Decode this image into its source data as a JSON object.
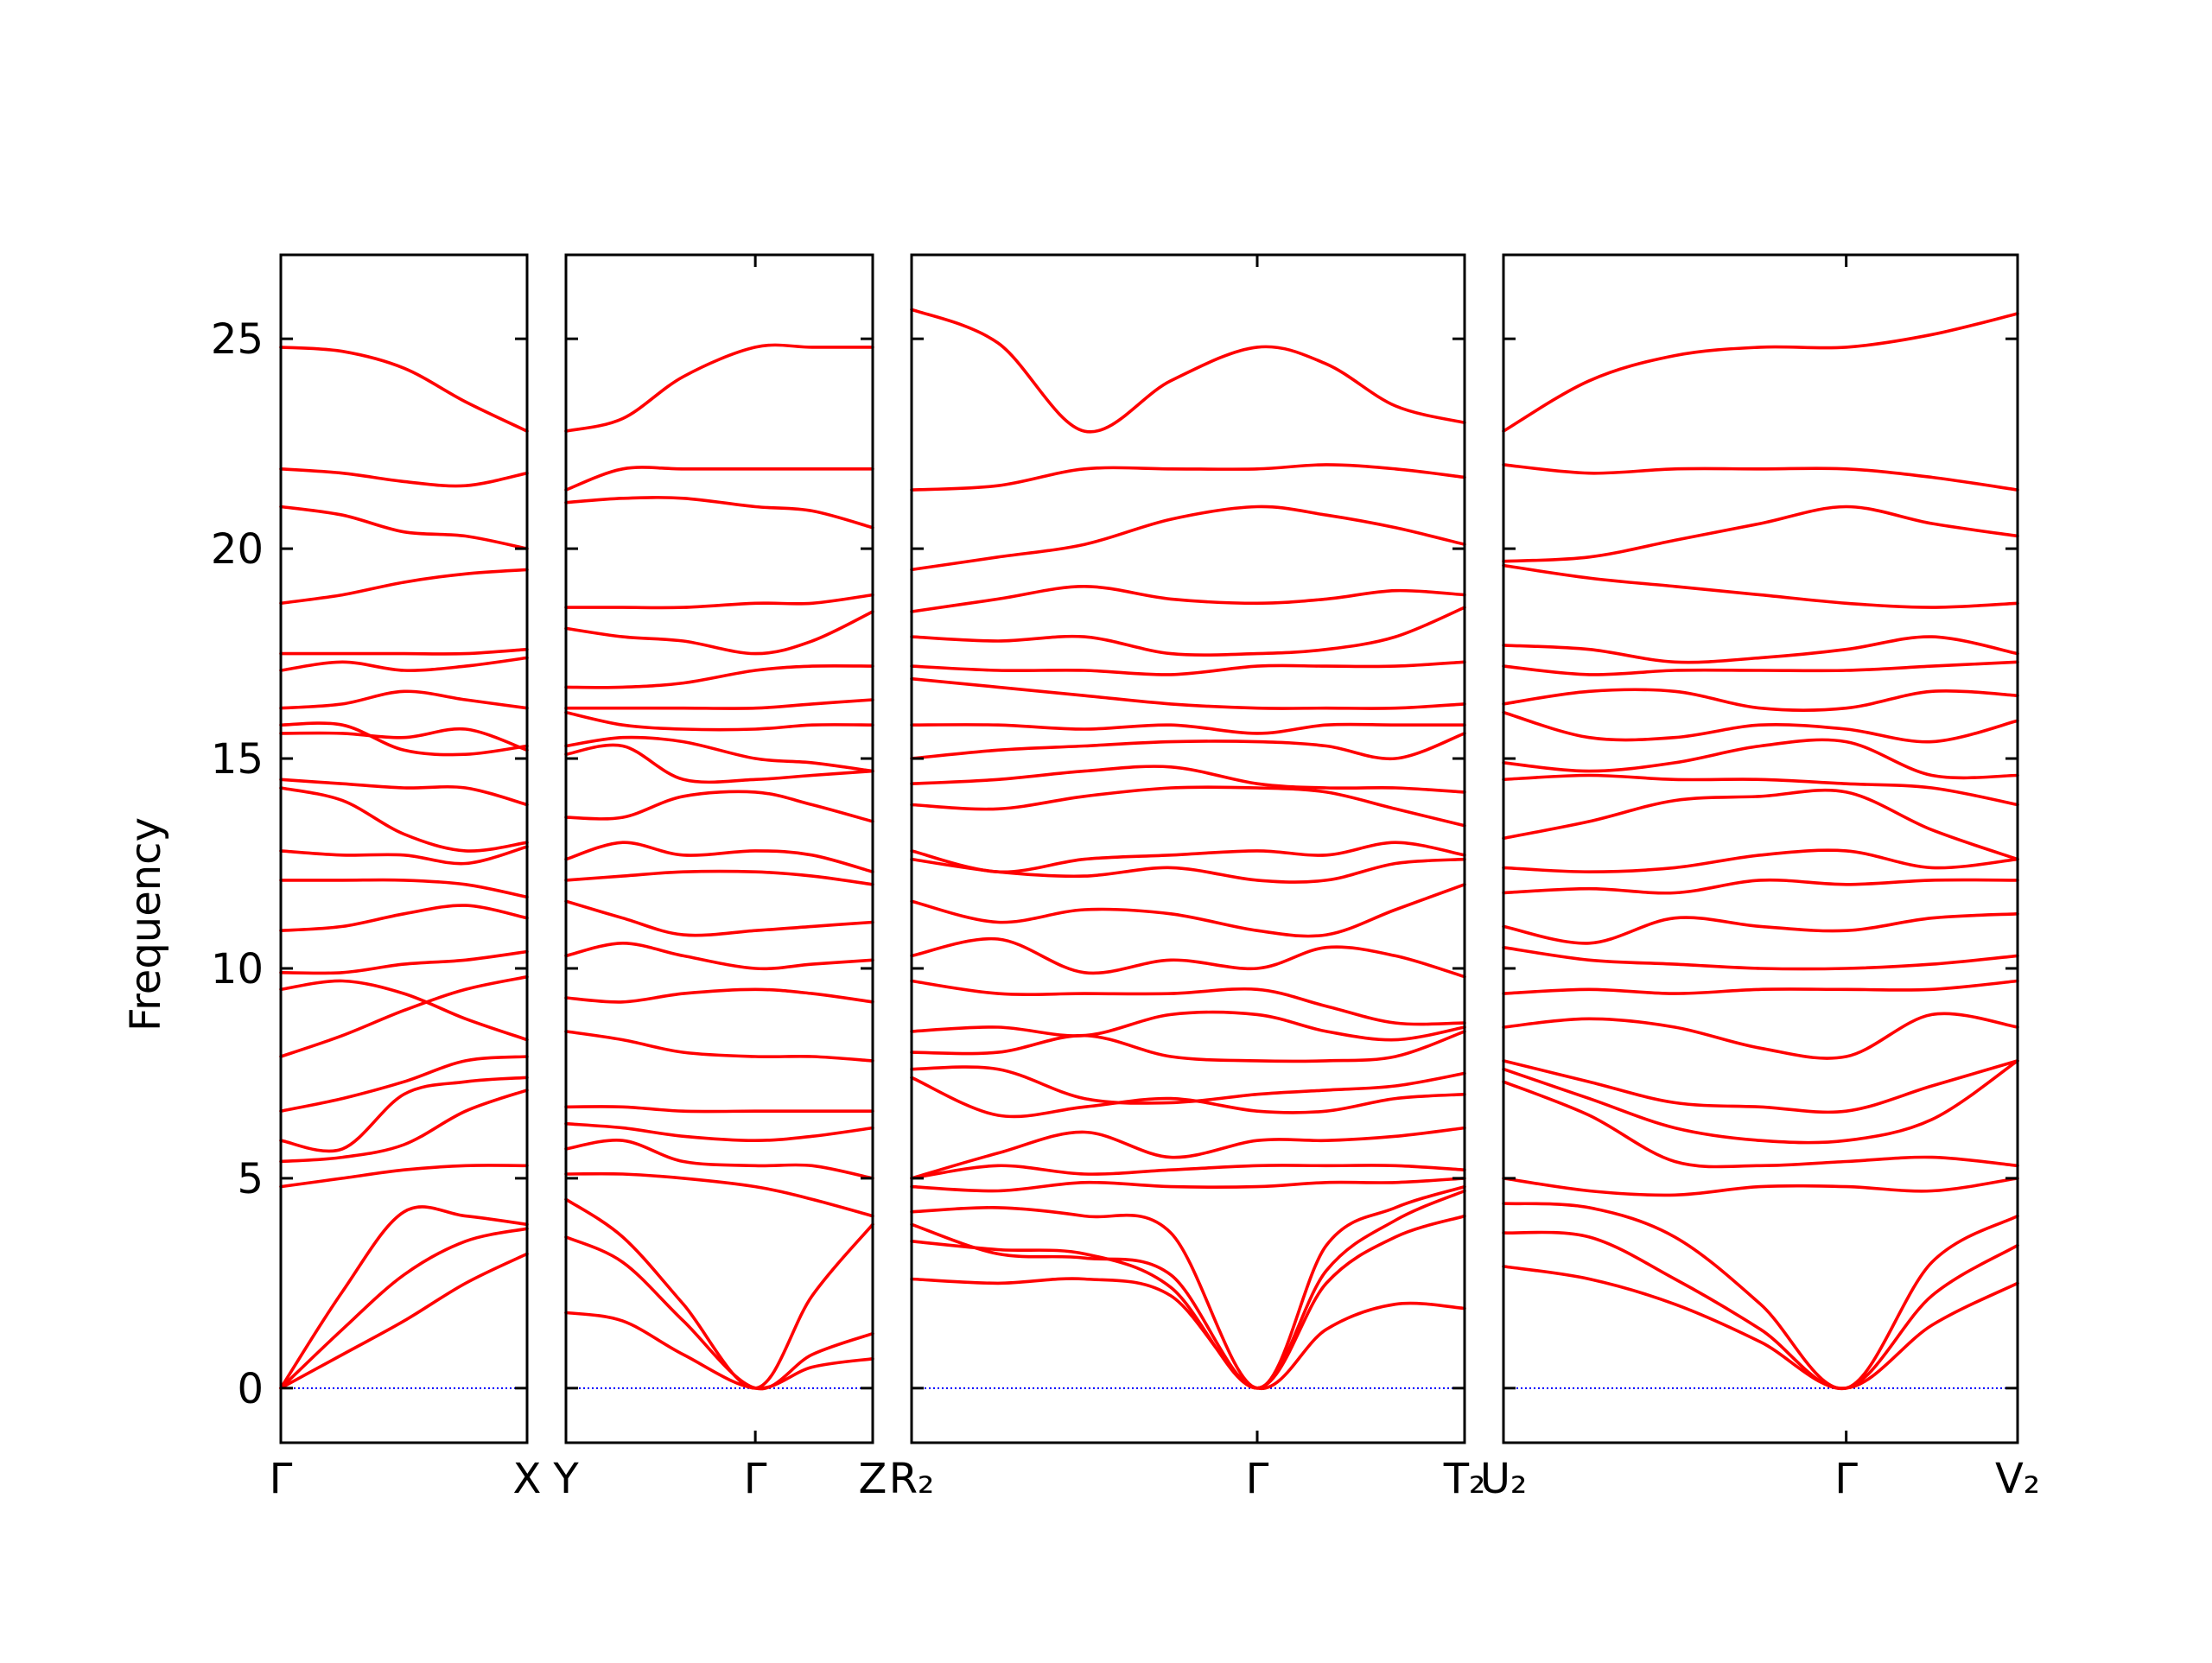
{
  "chart_data": {
    "type": "line",
    "title": "",
    "ylabel": "Frequency",
    "ylim": [
      -1.3,
      27
    ],
    "yticks": [
      0,
      5,
      10,
      15,
      20,
      25
    ],
    "ytick_labels": [
      "0",
      "5",
      "10",
      "15",
      "20",
      "25"
    ],
    "grid": false,
    "legend": "none",
    "line_color": "#ff0000",
    "zero_line_color": "#0000ff",
    "panels": [
      {
        "path": "Γ–X",
        "x": [
          0,
          0.25,
          0.5,
          0.75,
          1
        ],
        "xticks": [
          0,
          1
        ],
        "xtick_labels": [
          "Γ",
          "X"
        ],
        "bands": [
          [
            0,
            0.8,
            1.6,
            2.5,
            3.2
          ],
          [
            0,
            1.4,
            2.7,
            3.5,
            3.8
          ],
          [
            0,
            2.3,
            4.2,
            4.1,
            3.9
          ],
          [
            4.8,
            5.0,
            5.2,
            5.3,
            5.3
          ],
          [
            5.4,
            5.5,
            5.8,
            6.6,
            7.1
          ],
          [
            5.9,
            5.7,
            7.0,
            7.3,
            7.4
          ],
          [
            6.6,
            6.9,
            7.3,
            7.8,
            7.9
          ],
          [
            7.9,
            8.4,
            9.0,
            9.5,
            9.8
          ],
          [
            9.5,
            9.7,
            9.4,
            8.8,
            8.3
          ],
          [
            9.9,
            9.9,
            10.1,
            10.2,
            10.4
          ],
          [
            10.9,
            11.0,
            11.3,
            11.5,
            11.2
          ],
          [
            12.1,
            12.1,
            12.1,
            12.0,
            11.7
          ],
          [
            12.8,
            12.7,
            12.7,
            12.5,
            12.9
          ],
          [
            14.3,
            14.0,
            13.2,
            12.8,
            13.0
          ],
          [
            14.5,
            14.4,
            14.3,
            14.3,
            13.9
          ],
          [
            15.6,
            15.6,
            15.5,
            15.7,
            15.2
          ],
          [
            15.8,
            15.8,
            15.2,
            15.1,
            15.3
          ],
          [
            16.2,
            16.3,
            16.6,
            16.4,
            16.2
          ],
          [
            17.1,
            17.3,
            17.1,
            17.2,
            17.4
          ],
          [
            17.5,
            17.5,
            17.5,
            17.5,
            17.6
          ],
          [
            18.7,
            18.9,
            19.2,
            19.4,
            19.5
          ],
          [
            21.0,
            20.8,
            20.4,
            20.3,
            20.0
          ],
          [
            21.9,
            21.8,
            21.6,
            21.5,
            21.8
          ],
          [
            24.8,
            24.7,
            24.3,
            23.5,
            22.8
          ]
        ]
      },
      {
        "path": "Y–Γ–Z",
        "x": [
          0,
          0.3,
          0.62,
          1,
          1.3,
          1.62
        ],
        "xticks": [
          0,
          1,
          1.62
        ],
        "xtick_labels": [
          "Y",
          "Γ",
          "Z"
        ],
        "bands": [
          [
            1.8,
            1.6,
            0.8,
            0,
            0.5,
            0.7
          ],
          [
            3.6,
            3.0,
            1.6,
            0,
            0.8,
            1.3
          ],
          [
            4.5,
            3.6,
            2.0,
            0,
            2.2,
            3.9
          ],
          [
            5.1,
            5.1,
            5.0,
            4.8,
            4.5,
            4.1
          ],
          [
            5.7,
            5.9,
            5.4,
            5.3,
            5.3,
            5.0
          ],
          [
            6.3,
            6.2,
            6.0,
            5.9,
            6.0,
            6.2
          ],
          [
            6.7,
            6.7,
            6.6,
            6.6,
            6.6,
            6.6
          ],
          [
            8.5,
            8.3,
            8.0,
            7.9,
            7.9,
            7.8
          ],
          [
            9.3,
            9.2,
            9.4,
            9.5,
            9.4,
            9.2
          ],
          [
            10.3,
            10.6,
            10.3,
            10.0,
            10.1,
            10.2
          ],
          [
            11.6,
            11.2,
            10.8,
            10.9,
            11.0,
            11.1
          ],
          [
            12.1,
            12.2,
            12.3,
            12.3,
            12.2,
            12.0
          ],
          [
            12.6,
            13.0,
            12.7,
            12.8,
            12.7,
            12.3
          ],
          [
            13.6,
            13.6,
            14.1,
            14.2,
            13.9,
            13.5
          ],
          [
            15.1,
            15.3,
            14.5,
            14.5,
            14.6,
            14.7
          ],
          [
            15.3,
            15.5,
            15.4,
            15.0,
            14.9,
            14.7
          ],
          [
            16.1,
            15.8,
            15.7,
            15.7,
            15.8,
            15.8
          ],
          [
            16.2,
            16.2,
            16.2,
            16.2,
            16.3,
            16.4
          ],
          [
            16.7,
            16.7,
            16.8,
            17.1,
            17.2,
            17.2
          ],
          [
            18.1,
            17.9,
            17.8,
            17.5,
            17.8,
            18.5
          ],
          [
            18.6,
            18.6,
            18.6,
            18.7,
            18.7,
            18.9
          ],
          [
            21.1,
            21.2,
            21.2,
            21.0,
            20.9,
            20.5
          ],
          [
            21.4,
            21.9,
            21.9,
            21.9,
            21.9,
            21.9
          ],
          [
            22.8,
            23.1,
            24.1,
            24.8,
            24.8,
            24.8
          ]
        ]
      },
      {
        "path": "R2–Γ–T2",
        "x": [
          0,
          0.25,
          0.5,
          0.75,
          1,
          1.2,
          1.4,
          1.6
        ],
        "xticks": [
          0,
          1,
          1.6
        ],
        "xtick_labels": [
          "R₂",
          "Γ",
          "T₂"
        ],
        "bands": [
          [
            2.6,
            2.5,
            2.6,
            2.2,
            0,
            1.4,
            2.0,
            1.9
          ],
          [
            3.5,
            3.3,
            3.2,
            2.4,
            0,
            2.5,
            3.6,
            4.1
          ],
          [
            3.9,
            3.2,
            3.1,
            2.7,
            0,
            2.8,
            4.0,
            4.7
          ],
          [
            4.2,
            4.3,
            4.1,
            3.7,
            0,
            3.4,
            4.3,
            4.8
          ],
          [
            4.8,
            4.7,
            4.9,
            4.8,
            4.8,
            4.9,
            4.9,
            5.0
          ],
          [
            5.0,
            5.3,
            5.1,
            5.2,
            5.3,
            5.3,
            5.3,
            5.2
          ],
          [
            5.0,
            5.6,
            6.1,
            5.5,
            5.9,
            5.9,
            6.0,
            6.2
          ],
          [
            7.4,
            6.5,
            6.7,
            6.9,
            6.6,
            6.6,
            6.9,
            7.0
          ],
          [
            7.6,
            7.6,
            6.9,
            6.8,
            7.0,
            7.1,
            7.2,
            7.5
          ],
          [
            8.0,
            8.0,
            8.4,
            7.9,
            7.8,
            7.8,
            7.9,
            8.5
          ],
          [
            8.5,
            8.6,
            8.4,
            8.9,
            8.9,
            8.5,
            8.3,
            8.6
          ],
          [
            9.7,
            9.4,
            9.4,
            9.4,
            9.5,
            9.1,
            8.7,
            8.7
          ],
          [
            10.3,
            10.7,
            9.9,
            10.2,
            10.0,
            10.5,
            10.3,
            9.8
          ],
          [
            11.6,
            11.1,
            11.4,
            11.3,
            10.9,
            10.8,
            11.4,
            12.0
          ],
          [
            12.6,
            12.3,
            12.2,
            12.4,
            12.1,
            12.1,
            12.5,
            12.6
          ],
          [
            12.8,
            12.3,
            12.6,
            12.7,
            12.8,
            12.7,
            13.0,
            12.7
          ],
          [
            13.9,
            13.8,
            14.1,
            14.3,
            14.3,
            14.2,
            13.8,
            13.4
          ],
          [
            14.4,
            14.5,
            14.7,
            14.8,
            14.4,
            14.3,
            14.3,
            14.2
          ],
          [
            15.0,
            15.2,
            15.3,
            15.4,
            15.4,
            15.3,
            15.0,
            15.6
          ],
          [
            15.8,
            15.8,
            15.7,
            15.8,
            15.6,
            15.8,
            15.8,
            15.8
          ],
          [
            16.9,
            16.7,
            16.5,
            16.3,
            16.2,
            16.2,
            16.2,
            16.3
          ],
          [
            17.2,
            17.1,
            17.1,
            17.0,
            17.2,
            17.2,
            17.2,
            17.3
          ],
          [
            17.9,
            17.8,
            17.9,
            17.5,
            17.5,
            17.6,
            17.9,
            18.6
          ],
          [
            18.5,
            18.8,
            19.1,
            18.8,
            18.7,
            18.8,
            19.0,
            18.9
          ],
          [
            19.5,
            19.8,
            20.1,
            20.7,
            21.0,
            20.8,
            20.5,
            20.1
          ],
          [
            21.4,
            21.5,
            21.9,
            21.9,
            21.9,
            22.0,
            21.9,
            21.7
          ],
          [
            25.7,
            24.9,
            22.8,
            24.0,
            24.8,
            24.4,
            23.4,
            23.0
          ]
        ]
      },
      {
        "path": "U2–Γ–V2",
        "x": [
          0,
          0.25,
          0.5,
          0.75,
          1,
          1.25,
          1.5
        ],
        "xticks": [
          0,
          1,
          1.5
        ],
        "xtick_labels": [
          "U₂",
          "Γ",
          "V₂"
        ],
        "bands": [
          [
            2.9,
            2.6,
            2.0,
            1.1,
            0,
            1.5,
            2.5
          ],
          [
            3.7,
            3.6,
            2.6,
            1.4,
            0,
            2.2,
            3.4
          ],
          [
            4.4,
            4.3,
            3.6,
            2.0,
            0,
            3.0,
            4.1
          ],
          [
            5.0,
            4.7,
            4.6,
            4.8,
            4.8,
            4.7,
            5.0
          ],
          [
            7.3,
            6.5,
            5.4,
            5.3,
            5.4,
            5.5,
            5.3
          ],
          [
            7.6,
            6.9,
            6.2,
            5.9,
            5.9,
            6.4,
            7.8
          ],
          [
            7.8,
            7.3,
            6.8,
            6.7,
            6.6,
            7.2,
            7.8
          ],
          [
            8.6,
            8.8,
            8.6,
            8.1,
            7.9,
            8.9,
            8.6
          ],
          [
            9.4,
            9.5,
            9.4,
            9.5,
            9.5,
            9.5,
            9.7
          ],
          [
            10.5,
            10.2,
            10.1,
            10.0,
            10.0,
            10.1,
            10.3
          ],
          [
            11.0,
            10.6,
            11.2,
            11.0,
            10.9,
            11.2,
            11.3
          ],
          [
            11.8,
            11.9,
            11.8,
            12.1,
            12.0,
            12.1,
            12.1
          ],
          [
            12.4,
            12.3,
            12.4,
            12.7,
            12.8,
            12.4,
            12.6
          ],
          [
            13.1,
            13.5,
            14.0,
            14.1,
            14.2,
            13.3,
            12.6
          ],
          [
            14.5,
            14.6,
            14.5,
            14.5,
            14.4,
            14.3,
            13.9
          ],
          [
            14.9,
            14.7,
            14.9,
            15.3,
            15.4,
            14.6,
            14.6
          ],
          [
            16.1,
            15.5,
            15.5,
            15.8,
            15.7,
            15.4,
            15.9
          ],
          [
            16.3,
            16.6,
            16.6,
            16.2,
            16.2,
            16.6,
            16.5
          ],
          [
            17.2,
            17.0,
            17.1,
            17.1,
            17.1,
            17.2,
            17.3
          ],
          [
            17.7,
            17.6,
            17.3,
            17.4,
            17.6,
            17.9,
            17.5
          ],
          [
            19.6,
            19.3,
            19.1,
            18.9,
            18.7,
            18.6,
            18.7
          ],
          [
            19.7,
            19.8,
            20.2,
            20.6,
            21.0,
            20.6,
            20.3
          ],
          [
            22.0,
            21.8,
            21.9,
            21.9,
            21.9,
            21.7,
            21.4
          ],
          [
            22.8,
            24.0,
            24.6,
            24.8,
            24.8,
            25.1,
            25.6
          ]
        ]
      }
    ]
  }
}
